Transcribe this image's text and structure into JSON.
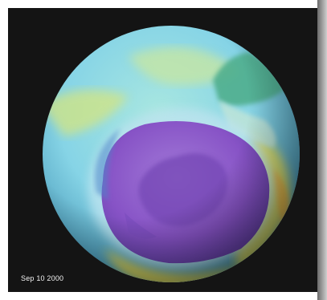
{
  "photo": {
    "subject_icon": "globe-ozone-map-icon",
    "caption_date": "Sep 10 2000"
  },
  "colors": {
    "background": "#141414",
    "ozone_hole": "#8a55c9",
    "ozone_low": "#8ed7e8",
    "ozone_mid": "#bfe8c5",
    "ozone_high": "#e8e25a",
    "land_mass": "#4fae8d"
  }
}
